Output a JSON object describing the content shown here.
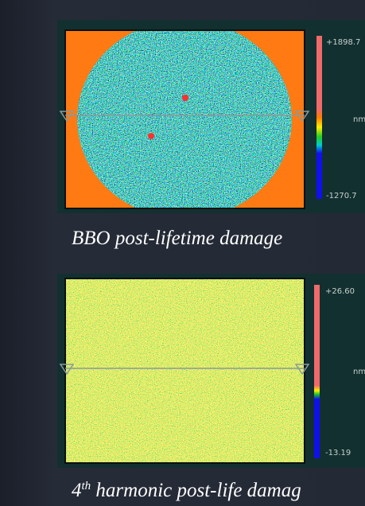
{
  "panels": [
    {
      "max_label": "+1898.7",
      "unit": "nm",
      "min_label": "-1270.7",
      "caption": "BBO post-lifetime damage"
    },
    {
      "max_label": "+26.60",
      "unit": "nm",
      "min_label": "-13.19",
      "caption_number": "4",
      "caption_superscript": "th",
      "caption": " harmonic post-life damag"
    }
  ]
}
